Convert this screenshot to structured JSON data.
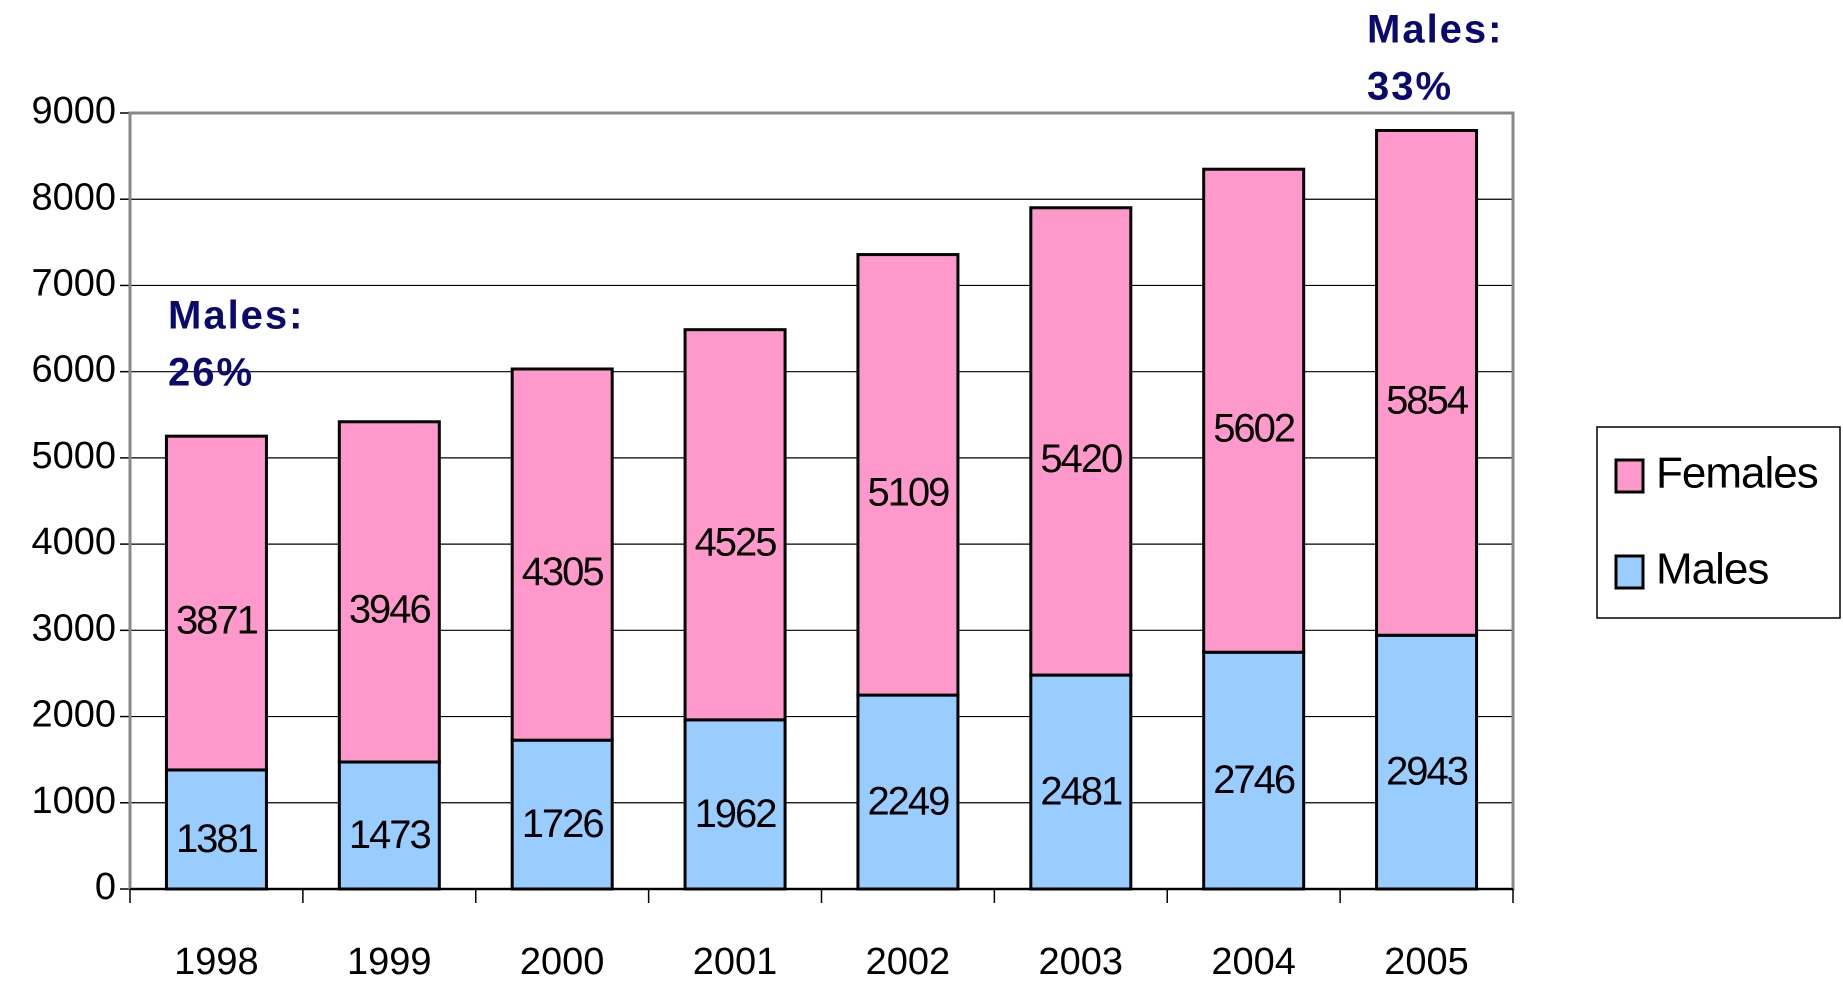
{
  "chart_data": {
    "type": "stacked_bar",
    "categories": [
      "1998",
      "1999",
      "2000",
      "2001",
      "2002",
      "2003",
      "2004",
      "2005"
    ],
    "series": [
      {
        "name": "Males",
        "color": "#99ccff",
        "values": [
          1381,
          1473,
          1726,
          1962,
          2249,
          2481,
          2746,
          2943
        ]
      },
      {
        "name": "Females",
        "color": "#ff99cc",
        "values": [
          3871,
          3946,
          4305,
          4525,
          5109,
          5420,
          5602,
          5854
        ]
      }
    ],
    "ylim": [
      0,
      9000
    ],
    "yticks": [
      0,
      1000,
      2000,
      3000,
      4000,
      5000,
      6000,
      7000,
      8000,
      9000
    ],
    "grid": true,
    "legend": "right",
    "annotations": [
      [
        "Males:",
        "26%"
      ],
      [
        "Males:",
        "33%"
      ]
    ]
  }
}
